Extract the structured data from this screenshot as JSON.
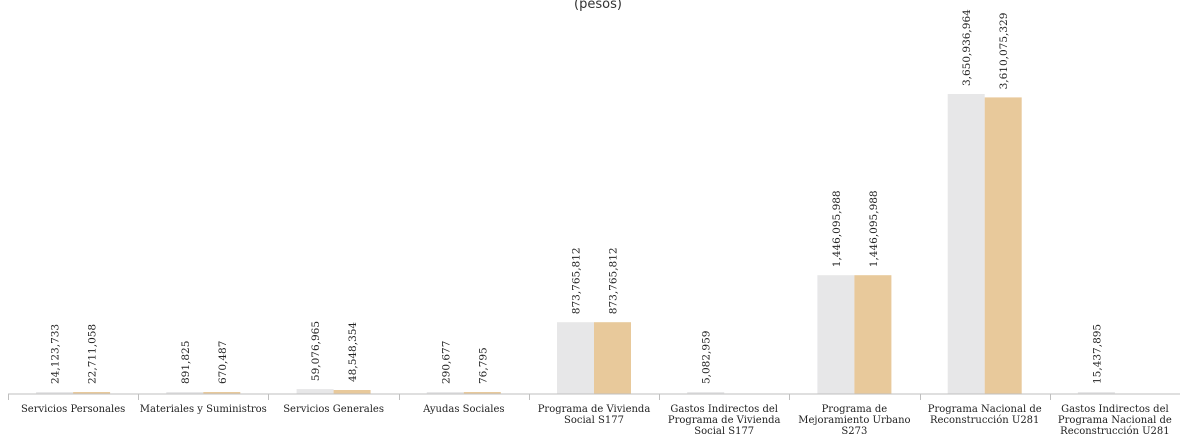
{
  "chart_data": {
    "type": "bar",
    "subtitle": "(pesos)",
    "categories": [
      [
        "Servicios Personales"
      ],
      [
        "Materiales y Suministros"
      ],
      [
        "Servicios Generales"
      ],
      [
        "Ayudas Sociales"
      ],
      [
        "Programa de Vivienda",
        "Social S177"
      ],
      [
        "Gastos Indirectos del",
        "Programa de Vivienda",
        "Social S177"
      ],
      [
        "Programa de",
        "Mejoramiento Urbano",
        "S273"
      ],
      [
        "Programa Nacional de",
        "Reconstrucción U281"
      ],
      [
        "Gastos Indirectos del",
        "Programa Nacional de",
        "Reconstrucción U281"
      ]
    ],
    "series": [
      {
        "color": "#e7e7e8",
        "values": [
          24123733,
          891825,
          59076965,
          290677,
          873765812,
          5082959,
          1446095988,
          3650936964,
          15437895
        ],
        "labels": [
          "24,123,733",
          "891,825",
          "59,076,965",
          "290,677",
          "873,765,812",
          "5,082,959",
          "1,446,095,988",
          "3,650,936,964",
          "15,437,895"
        ]
      },
      {
        "color": "#e8c99b",
        "values": [
          22711058,
          670487,
          48548354,
          76795,
          873765812,
          null,
          1446095988,
          3610075329,
          null
        ],
        "labels": [
          "22,711,058",
          "670,487",
          "48,548,354",
          "76,795",
          "873,765,812",
          "",
          "1,446,095,988",
          "3,610,075,329",
          ""
        ]
      }
    ]
  }
}
